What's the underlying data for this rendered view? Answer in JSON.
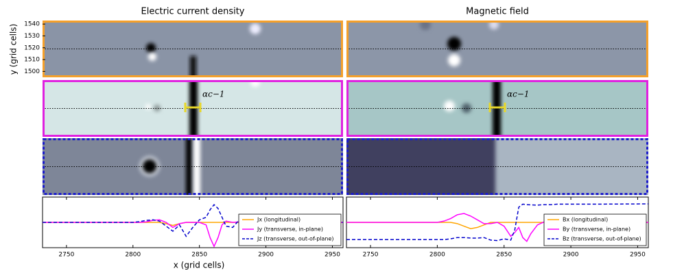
{
  "chart_data": [
    {
      "type": "line",
      "title": "Electric current density",
      "xlabel": "x (grid cells)",
      "ylabel": "y (grid cells)",
      "image_ylim": [
        1495,
        1543
      ],
      "image_yticks": [
        1500,
        1510,
        1520,
        1530,
        1540
      ],
      "annotation": "αc−1",
      "xlim": [
        2732,
        2958
      ],
      "xticks": [
        2750,
        2800,
        2850,
        2900,
        2950
      ],
      "ylim": [
        -1,
        1
      ],
      "x": [
        2732,
        2760,
        2790,
        2800,
        2805,
        2810,
        2815,
        2820,
        2825,
        2830,
        2835,
        2840,
        2845,
        2850,
        2855,
        2858,
        2861,
        2864,
        2867,
        2870,
        2875,
        2880,
        2885,
        2890,
        2900,
        2920,
        2958
      ],
      "series": [
        {
          "name": "Jx (longitudinal)",
          "color": "#ffa500",
          "linestyle": "solid",
          "values": [
            0,
            0,
            0,
            0,
            0,
            0,
            0,
            0,
            -0.05,
            -0.12,
            -0.05,
            0,
            0,
            0,
            0,
            0,
            0,
            0,
            0,
            0,
            0,
            0,
            0,
            0,
            0,
            0,
            0
          ]
        },
        {
          "name": "Jy (transverse, in-plane)",
          "color": "#ff00ff",
          "linestyle": "solid",
          "values": [
            0,
            0,
            0,
            0,
            0,
            0.02,
            0.08,
            0.1,
            0,
            -0.2,
            -0.05,
            0,
            0,
            0,
            -0.1,
            -0.6,
            -0.95,
            -0.6,
            -0.1,
            0.05,
            0,
            0.02,
            0,
            0,
            0,
            0,
            0
          ]
        },
        {
          "name": "Jz (transverse, out-of-plane)",
          "color": "#0000cc",
          "linestyle": "dashed",
          "values": [
            0,
            0,
            0,
            0,
            0.03,
            0.08,
            0.1,
            0.05,
            -0.15,
            -0.35,
            -0.1,
            -0.55,
            -0.2,
            0.1,
            0.2,
            0.5,
            0.7,
            0.55,
            0.2,
            -0.15,
            -0.2,
            0.1,
            -0.05,
            0.03,
            0,
            0,
            0
          ]
        }
      ]
    },
    {
      "type": "line",
      "title": "Magnetic field",
      "annotation": "αc−1",
      "xlim": [
        2732,
        2958
      ],
      "xticks": [
        2750,
        2800,
        2850,
        2900,
        2950
      ],
      "ylim": [
        -1,
        1
      ],
      "x": [
        2732,
        2760,
        2790,
        2800,
        2805,
        2810,
        2815,
        2820,
        2825,
        2830,
        2835,
        2840,
        2845,
        2850,
        2855,
        2858,
        2861,
        2864,
        2867,
        2870,
        2875,
        2880,
        2885,
        2890,
        2900,
        2920,
        2958
      ],
      "series": [
        {
          "name": "Bx (longitudinal)",
          "color": "#ffa500",
          "linestyle": "solid",
          "values": [
            0,
            0,
            0,
            0,
            0,
            0,
            -0.05,
            -0.15,
            -0.25,
            -0.2,
            -0.1,
            0,
            0,
            0,
            0,
            0,
            0,
            0,
            0,
            0,
            0,
            0,
            0,
            0,
            0,
            0,
            0
          ]
        },
        {
          "name": "By (transverse, in-plane)",
          "color": "#ff00ff",
          "linestyle": "solid",
          "values": [
            0,
            0,
            0,
            0,
            0.05,
            0.15,
            0.3,
            0.35,
            0.25,
            0.1,
            -0.05,
            -0.05,
            0,
            -0.15,
            -0.55,
            -0.4,
            -0.2,
            -0.6,
            -0.75,
            -0.45,
            -0.1,
            0.02,
            0,
            0,
            0,
            0,
            0
          ]
        },
        {
          "name": "Bz (transverse, out-of-plane)",
          "color": "#0000cc",
          "linestyle": "dashed",
          "values": [
            -0.68,
            -0.68,
            -0.68,
            -0.68,
            -0.68,
            -0.65,
            -0.6,
            -0.6,
            -0.62,
            -0.62,
            -0.6,
            -0.7,
            -0.72,
            -0.65,
            -0.7,
            -0.3,
            0.6,
            0.72,
            0.7,
            0.69,
            0.68,
            0.7,
            0.7,
            0.72,
            0.72,
            0.72,
            0.73
          ]
        }
      ]
    }
  ]
}
